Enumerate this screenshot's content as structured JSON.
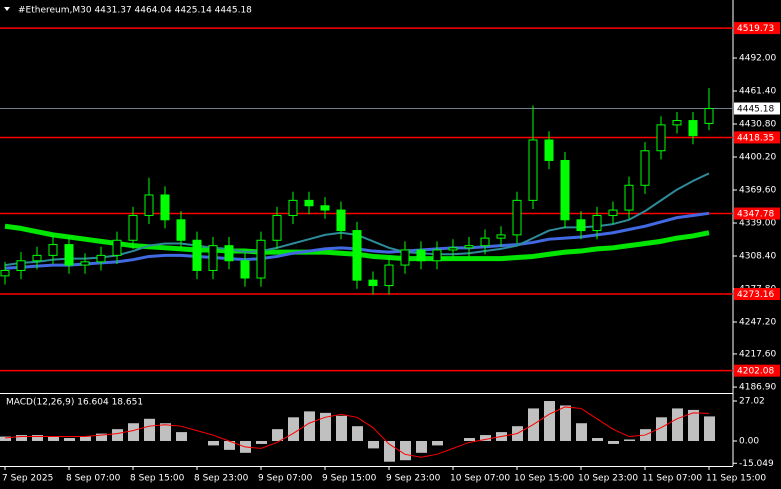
{
  "chart_data": [
    {
      "type": "candlestick",
      "title": "#Ethereum,M30  4431.37 4464.04 4425.14 4445.18",
      "categories": [
        "7 Sep 2025",
        null,
        null,
        null,
        "8 Sep 07:00",
        null,
        null,
        null,
        "8 Sep 15:00",
        null,
        null,
        null,
        "8 Sep 23:00",
        null,
        null,
        null,
        "9 Sep 07:00",
        null,
        null,
        null,
        "9 Sep 15:00",
        null,
        null,
        null,
        "9 Sep 23:00",
        null,
        null,
        null,
        "10 Sep 07:00",
        null,
        null,
        null,
        "10 Sep 15:00",
        null,
        null,
        null,
        "10 Sep 23:00",
        null,
        null,
        null,
        "11 Sep 07:00",
        null,
        null,
        null,
        "11 Sep 15:00"
      ],
      "open": [
        4290,
        4295,
        4304,
        4309,
        4319,
        4300,
        4303,
        4309,
        4323,
        4346,
        4365,
        4342,
        4323,
        4295,
        4318,
        4304,
        4288,
        4323,
        4346,
        4360,
        4355,
        4351,
        4332,
        4286,
        4281,
        4300,
        4314,
        4304,
        4314,
        4316,
        4318,
        4325,
        4328,
        4360,
        4416,
        4397,
        4342,
        4332,
        4346,
        4351,
        4374,
        4406,
        4430,
        4434,
        4431.37
      ],
      "high": [
        4303,
        4312,
        4317,
        4327,
        4327,
        4311,
        4317,
        4331,
        4354,
        4381,
        4373,
        4350,
        4331,
        4326,
        4326,
        4312,
        4331,
        4354,
        4368,
        4368,
        4363,
        4359,
        4340,
        4294,
        4308,
        4322,
        4322,
        4322,
        4324,
        4326,
        4333,
        4336,
        4368,
        4448,
        4424,
        4405,
        4350,
        4354,
        4359,
        4382,
        4414,
        4438,
        4442,
        4442,
        4464.04
      ],
      "low": [
        4282,
        4287,
        4296,
        4301,
        4292,
        4292,
        4295,
        4301,
        4315,
        4338,
        4334,
        4315,
        4287,
        4287,
        4296,
        4280,
        4280,
        4315,
        4338,
        4347,
        4343,
        4324,
        4278,
        4273,
        4273,
        4292,
        4296,
        4296,
        4306,
        4308,
        4310,
        4317,
        4320,
        4352,
        4389,
        4334,
        4324,
        4324,
        4338,
        4343,
        4366,
        4398,
        4422,
        4412,
        4425.14
      ],
      "close": [
        4295,
        4304,
        4309,
        4319,
        4300,
        4303,
        4309,
        4323,
        4346,
        4365,
        4342,
        4323,
        4295,
        4318,
        4304,
        4288,
        4323,
        4346,
        4360,
        4355,
        4351,
        4332,
        4286,
        4281,
        4300,
        4314,
        4304,
        4314,
        4316,
        4318,
        4325,
        4328,
        4360,
        4416,
        4397,
        4342,
        4332,
        4346,
        4351,
        4374,
        4406,
        4430,
        4434,
        4420,
        4445.18
      ],
      "candle_color": "#00ff00",
      "lines": [
        {
          "color": "#00e600",
          "width": 5,
          "values": [
            4336,
            4334,
            4331,
            4328,
            4326,
            4324,
            4322,
            4320,
            4318,
            4317,
            4316,
            4315,
            4314,
            4314,
            4313,
            4313,
            4312,
            4312,
            4312,
            4312,
            4312,
            4311,
            4310,
            4308,
            4307,
            4306,
            4306,
            4306,
            4306,
            4306,
            4306,
            4306,
            4307,
            4308,
            4310,
            4312,
            4313,
            4315,
            4316,
            4318,
            4320,
            4322,
            4325,
            4327,
            4330
          ]
        },
        {
          "color": "#4169e1",
          "width": 3,
          "values": [
            4297,
            4298,
            4299,
            4300,
            4300,
            4301,
            4302,
            4303,
            4305,
            4308,
            4309,
            4309,
            4308,
            4307,
            4306,
            4305,
            4306,
            4308,
            4311,
            4313,
            4315,
            4316,
            4315,
            4313,
            4312,
            4313,
            4314,
            4315,
            4316,
            4316,
            4317,
            4318,
            4319,
            4321,
            4324,
            4325,
            4326,
            4328,
            4330,
            4333,
            4336,
            4340,
            4344,
            4346,
            4348
          ]
        },
        {
          "color": "#2e8b9a",
          "width": 2,
          "values": [
            4300,
            4302,
            4303,
            4305,
            4306,
            4306,
            4307,
            4309,
            4313,
            4318,
            4320,
            4320,
            4318,
            4316,
            4315,
            4312,
            4313,
            4316,
            4320,
            4324,
            4328,
            4330,
            4328,
            4322,
            4316,
            4312,
            4311,
            4310,
            4310,
            4311,
            4313,
            4315,
            4318,
            4325,
            4332,
            4335,
            4335,
            4336,
            4338,
            4342,
            4350,
            4360,
            4370,
            4378,
            4385
          ]
        }
      ],
      "levels": [
        {
          "value": 4519.73,
          "color": "#ff0000"
        },
        {
          "value": 4418.35,
          "color": "#ff0000"
        },
        {
          "value": 4347.78,
          "color": "#ff0000"
        },
        {
          "value": 4273.16,
          "color": "#ff0000"
        },
        {
          "value": 4202.08,
          "color": "#ff0000"
        }
      ],
      "current_price": 4445.18,
      "ylim": [
        4182.3,
        4545.8
      ],
      "yticks": [
        {
          "value": 4492,
          "label": "4492.00"
        },
        {
          "value": 4461.4,
          "label": "4461.40"
        },
        {
          "value": 4430.8,
          "label": "4430.80"
        },
        {
          "value": 4400.2,
          "label": "4400.20"
        },
        {
          "value": 4369.6,
          "label": "4369.60"
        },
        {
          "value": 4339,
          "label": "4339.00"
        },
        {
          "value": 4308.4,
          "label": "4308.40"
        },
        {
          "value": 4277.8,
          "label": "4277.80"
        },
        {
          "value": 4247.2,
          "label": "4247.20"
        },
        {
          "value": 4217.6,
          "label": "4217.60"
        },
        {
          "value": 4186.9,
          "label": "4186.90"
        }
      ]
    },
    {
      "type": "macd",
      "title": "MACD(12,26,9) 16.604 18.651",
      "values": [
        3,
        4,
        4,
        3,
        2,
        3,
        5,
        8,
        12,
        15,
        12,
        6,
        0,
        -3,
        -6,
        -8,
        -2,
        8,
        16,
        20,
        19,
        17,
        10,
        -5,
        -14,
        -13,
        -8,
        -3,
        0,
        2,
        4,
        6,
        10,
        22,
        27,
        24,
        12,
        2,
        -2,
        1,
        8,
        16,
        22,
        21,
        16.604
      ],
      "color": "#c0c0c0",
      "signal": {
        "color": "#ff0000",
        "values": [
          2,
          3,
          3,
          3,
          3,
          3,
          4,
          5,
          7,
          10,
          11,
          10,
          7,
          4,
          0,
          -4,
          -5,
          -1,
          5,
          12,
          16,
          18,
          16,
          9,
          -2,
          -9,
          -11,
          -9,
          -5,
          -1,
          1,
          3,
          5,
          11,
          18,
          23,
          22,
          15,
          8,
          3,
          4,
          9,
          15,
          19,
          18.651
        ]
      },
      "ylim": [
        -16.9,
        31.07
      ],
      "yticks": [
        27.02,
        {
          "value": 0,
          "label": "0.00"
        },
        -15.049
      ]
    }
  ]
}
